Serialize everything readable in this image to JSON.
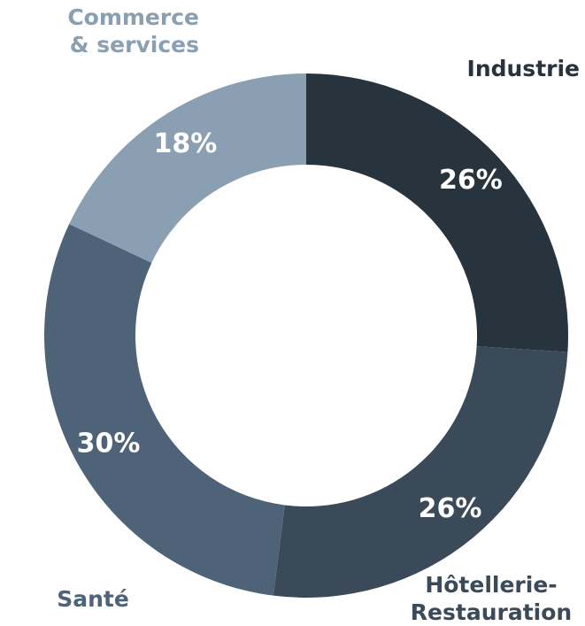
{
  "chart_data": {
    "type": "donut",
    "categories": [
      "Industrie",
      "Hôtellerie-Restauration",
      "Santé",
      "Commerce & services"
    ],
    "values": [
      26,
      26,
      30,
      18
    ],
    "value_labels": [
      "26%",
      "26%",
      "30%",
      "18%"
    ],
    "colors": [
      "#27333d",
      "#3a4a58",
      "#4e6378",
      "#8aa0b2"
    ],
    "label_colors": [
      "#27333d",
      "#3a4a58",
      "#4e6378",
      "#8aa0b2"
    ]
  }
}
